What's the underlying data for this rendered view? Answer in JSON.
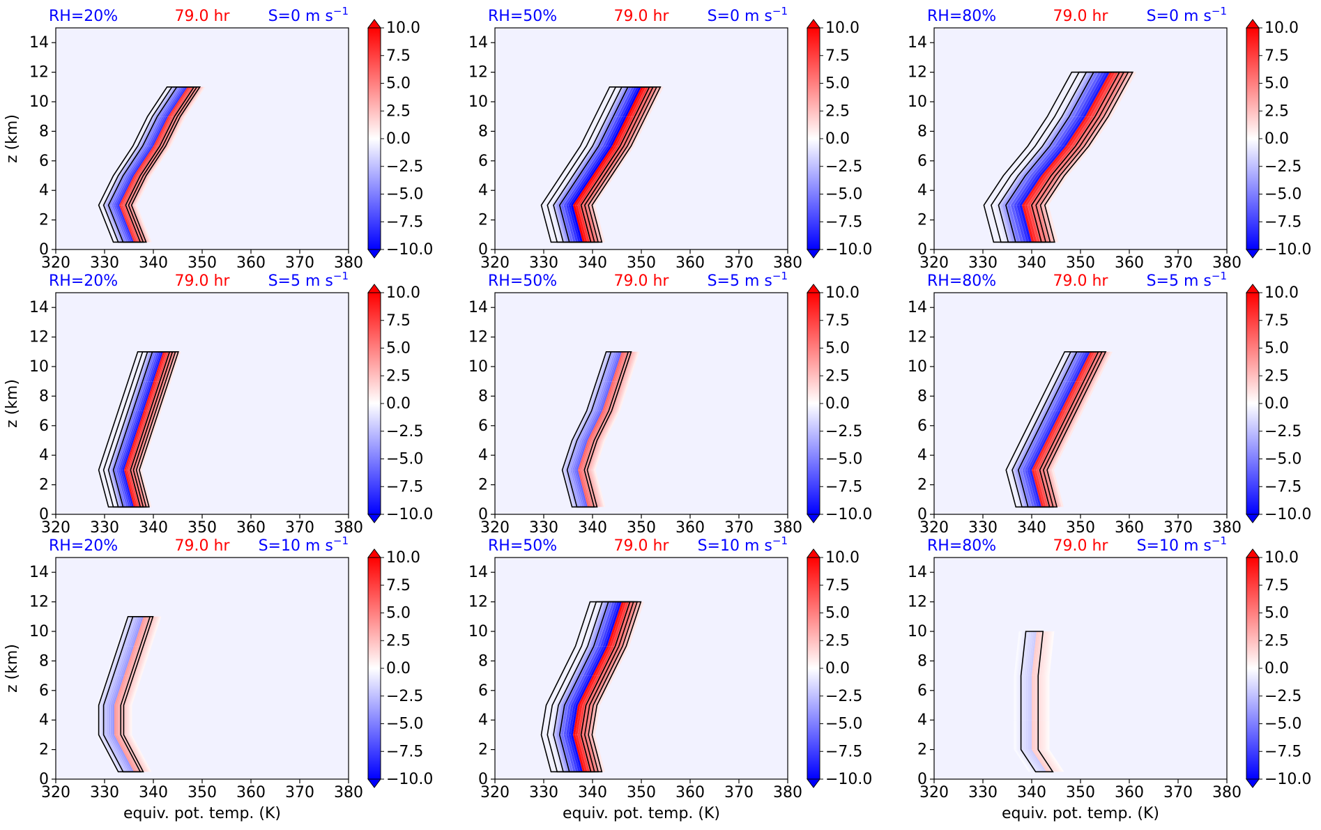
{
  "figure": {
    "time_label": "79.0 hr",
    "colors": {
      "label_blue": "#0000ff",
      "label_red": "#ff0000",
      "cmap_min": "#0000ff",
      "cmap_mid": "#ffffff",
      "cmap_max": "#ff0000",
      "background": "#f2f2ff",
      "contour": "#000000"
    }
  },
  "chart_data": [
    {
      "panel": "r0c0",
      "type": "heatmap",
      "rh_label": "RH=20%",
      "time_label": "79.0 hr",
      "shear_prefix": "S=0 m s",
      "shear_exp": "−1",
      "xlim": [
        320,
        380
      ],
      "ylim": [
        0,
        15
      ],
      "xticks": [
        "320",
        "330",
        "340",
        "350",
        "360",
        "370",
        "380"
      ],
      "yticks": [
        "0",
        "2",
        "4",
        "6",
        "8",
        "10",
        "12",
        "14"
      ],
      "ylabel": "z (km)",
      "xlabel": "",
      "colorbar_ticks": [
        "10.0",
        "7.5",
        "5.0",
        "2.5",
        "0.0",
        "−2.5",
        "−5.0",
        "−7.5",
        "−10.0"
      ],
      "colorbar_range": [
        -10,
        10
      ],
      "center_line": [
        [
          336,
          0.5
        ],
        [
          333,
          3
        ],
        [
          336,
          5
        ],
        [
          340,
          7
        ],
        [
          343,
          9
        ],
        [
          347,
          11
        ]
      ],
      "half_width": 4,
      "intensity": 0.8
    },
    {
      "panel": "r0c1",
      "type": "heatmap",
      "rh_label": "RH=50%",
      "time_label": "79.0 hr",
      "shear_prefix": "S=0 m s",
      "shear_exp": "−1",
      "xlim": [
        320,
        380
      ],
      "ylim": [
        0,
        15
      ],
      "xticks": [
        "320",
        "330",
        "340",
        "350",
        "360",
        "370",
        "380"
      ],
      "yticks": [
        "0",
        "2",
        "4",
        "6",
        "8",
        "10",
        "12",
        "14"
      ],
      "ylabel": "",
      "xlabel": "",
      "colorbar_ticks": [
        "10.0",
        "7.5",
        "5.0",
        "2.5",
        "0.0",
        "−2.5",
        "−5.0",
        "−7.5",
        "−10.0"
      ],
      "colorbar_range": [
        -10,
        10
      ],
      "center_line": [
        [
          338,
          0.5
        ],
        [
          336,
          3
        ],
        [
          340,
          5
        ],
        [
          344,
          7
        ],
        [
          347,
          9
        ],
        [
          350,
          11
        ]
      ],
      "half_width": 5,
      "intensity": 1.0
    },
    {
      "panel": "r0c2",
      "type": "heatmap",
      "rh_label": "RH=80%",
      "time_label": "79.0 hr",
      "shear_prefix": "S=0 m s",
      "shear_exp": "−1",
      "xlim": [
        320,
        380
      ],
      "ylim": [
        0,
        15
      ],
      "xticks": [
        "320",
        "330",
        "340",
        "350",
        "360",
        "370",
        "380"
      ],
      "yticks": [
        "0",
        "2",
        "4",
        "6",
        "8",
        "10",
        "12",
        "14"
      ],
      "ylabel": "",
      "xlabel": "",
      "colorbar_ticks": [
        "10.0",
        "7.5",
        "5.0",
        "2.5",
        "0.0",
        "−2.5",
        "−5.0",
        "−7.5",
        "−10.0"
      ],
      "colorbar_range": [
        -10,
        10
      ],
      "center_line": [
        [
          340,
          0.5
        ],
        [
          338,
          3
        ],
        [
          342,
          5
        ],
        [
          347,
          7
        ],
        [
          351,
          9
        ],
        [
          356,
          12
        ]
      ],
      "half_width": 6,
      "intensity": 0.9
    },
    {
      "panel": "r1c0",
      "type": "heatmap",
      "rh_label": "RH=20%",
      "time_label": "79.0 hr",
      "shear_prefix": "S=5 m s",
      "shear_exp": "−1",
      "xlim": [
        320,
        380
      ],
      "ylim": [
        0,
        15
      ],
      "xticks": [
        "320",
        "330",
        "340",
        "350",
        "360",
        "370",
        "380"
      ],
      "yticks": [
        "0",
        "2",
        "4",
        "6",
        "8",
        "10",
        "12",
        "14"
      ],
      "ylabel": "z (km)",
      "xlabel": "",
      "colorbar_ticks": [
        "10.0",
        "7.5",
        "5.0",
        "2.5",
        "0.0",
        "−2.5",
        "−5.0",
        "−7.5",
        "−10.0"
      ],
      "colorbar_range": [
        -10,
        10
      ],
      "center_line": [
        [
          336,
          0.5
        ],
        [
          334,
          3
        ],
        [
          336,
          5
        ],
        [
          338,
          7
        ],
        [
          340,
          9
        ],
        [
          342,
          11
        ]
      ],
      "half_width": 4,
      "intensity": 0.9
    },
    {
      "panel": "r1c1",
      "type": "heatmap",
      "rh_label": "RH=50%",
      "time_label": "79.0 hr",
      "shear_prefix": "S=5 m s",
      "shear_exp": "−1",
      "xlim": [
        320,
        380
      ],
      "ylim": [
        0,
        15
      ],
      "xticks": [
        "320",
        "330",
        "340",
        "350",
        "360",
        "370",
        "380"
      ],
      "yticks": [
        "0",
        "2",
        "4",
        "6",
        "8",
        "10",
        "12",
        "14"
      ],
      "ylabel": "",
      "xlabel": "",
      "colorbar_ticks": [
        "10.0",
        "7.5",
        "5.0",
        "2.5",
        "0.0",
        "−2.5",
        "−5.0",
        "−7.5",
        "−10.0"
      ],
      "colorbar_range": [
        -10,
        10
      ],
      "center_line": [
        [
          339,
          0.5
        ],
        [
          337,
          3
        ],
        [
          339,
          5
        ],
        [
          342,
          7
        ],
        [
          344,
          9
        ],
        [
          346,
          11
        ]
      ],
      "half_width": 4,
      "intensity": 0.6
    },
    {
      "panel": "r1c2",
      "type": "heatmap",
      "rh_label": "RH=80%",
      "time_label": "79.0 hr",
      "shear_prefix": "S=5 m s",
      "shear_exp": "−1",
      "xlim": [
        320,
        380
      ],
      "ylim": [
        0,
        15
      ],
      "xticks": [
        "320",
        "330",
        "340",
        "350",
        "360",
        "370",
        "380"
      ],
      "yticks": [
        "0",
        "2",
        "4",
        "6",
        "8",
        "10",
        "12",
        "14"
      ],
      "ylabel": "",
      "xlabel": "",
      "colorbar_ticks": [
        "10.0",
        "7.5",
        "5.0",
        "2.5",
        "0.0",
        "−2.5",
        "−5.0",
        "−7.5",
        "−10.0"
      ],
      "colorbar_range": [
        -10,
        10
      ],
      "center_line": [
        [
          342,
          0.5
        ],
        [
          340,
          3
        ],
        [
          343,
          5
        ],
        [
          346,
          7
        ],
        [
          349,
          9
        ],
        [
          352,
          11
        ]
      ],
      "half_width": 5,
      "intensity": 0.85
    },
    {
      "panel": "r2c0",
      "type": "heatmap",
      "rh_label": "RH=20%",
      "time_label": "79.0 hr",
      "shear_prefix": "S=10 m s",
      "shear_exp": "−1",
      "xlim": [
        320,
        380
      ],
      "ylim": [
        0,
        15
      ],
      "xticks": [
        "320",
        "330",
        "340",
        "350",
        "360",
        "370",
        "380"
      ],
      "yticks": [
        "0",
        "2",
        "4",
        "6",
        "8",
        "10",
        "12",
        "14"
      ],
      "ylabel": "z (km)",
      "xlabel": "equiv. pot. temp. (K)",
      "colorbar_ticks": [
        "10.0",
        "7.5",
        "5.0",
        "2.5",
        "0.0",
        "−2.5",
        "−5.0",
        "−7.5",
        "−10.0"
      ],
      "colorbar_range": [
        -10,
        10
      ],
      "center_line": [
        [
          336,
          0.5
        ],
        [
          332,
          3
        ],
        [
          332,
          5
        ],
        [
          334,
          7
        ],
        [
          336,
          9
        ],
        [
          338,
          11
        ]
      ],
      "half_width": 4,
      "intensity": 0.4
    },
    {
      "panel": "r2c1",
      "type": "heatmap",
      "rh_label": "RH=50%",
      "time_label": "79.0 hr",
      "shear_prefix": "S=10 m s",
      "shear_exp": "−1",
      "xlim": [
        320,
        380
      ],
      "ylim": [
        0,
        15
      ],
      "xticks": [
        "320",
        "330",
        "340",
        "350",
        "360",
        "370",
        "380"
      ],
      "yticks": [
        "0",
        "2",
        "4",
        "6",
        "8",
        "10",
        "12",
        "14"
      ],
      "ylabel": "",
      "xlabel": "equiv. pot. temp. (K)",
      "colorbar_ticks": [
        "10.0",
        "7.5",
        "5.0",
        "2.5",
        "0.0",
        "−2.5",
        "−5.0",
        "−7.5",
        "−10.0"
      ],
      "colorbar_range": [
        -10,
        10
      ],
      "center_line": [
        [
          338,
          0.5
        ],
        [
          336,
          3
        ],
        [
          337,
          5
        ],
        [
          340,
          7
        ],
        [
          343,
          9
        ],
        [
          346,
          12
        ]
      ],
      "half_width": 5,
      "intensity": 0.95
    },
    {
      "panel": "r2c2",
      "type": "heatmap",
      "rh_label": "RH=80%",
      "time_label": "79.0 hr",
      "shear_prefix": "S=10 m s",
      "shear_exp": "−1",
      "xlim": [
        320,
        380
      ],
      "ylim": [
        0,
        15
      ],
      "xticks": [
        "320",
        "330",
        "340",
        "350",
        "360",
        "370",
        "380"
      ],
      "yticks": [
        "0",
        "2",
        "4",
        "6",
        "8",
        "10",
        "12",
        "14"
      ],
      "ylabel": "",
      "xlabel": "equiv. pot. temp. (K)",
      "colorbar_ticks": [
        "10.0",
        "7.5",
        "5.0",
        "2.5",
        "0.0",
        "−2.5",
        "−5.0",
        "−7.5",
        "−10.0"
      ],
      "colorbar_range": [
        -10,
        10
      ],
      "center_line": [
        [
          343,
          0.5
        ],
        [
          340,
          2
        ],
        [
          340,
          4
        ],
        [
          340,
          7
        ],
        [
          341,
          10
        ]
      ],
      "half_width": 4,
      "intensity": 0.2
    }
  ]
}
